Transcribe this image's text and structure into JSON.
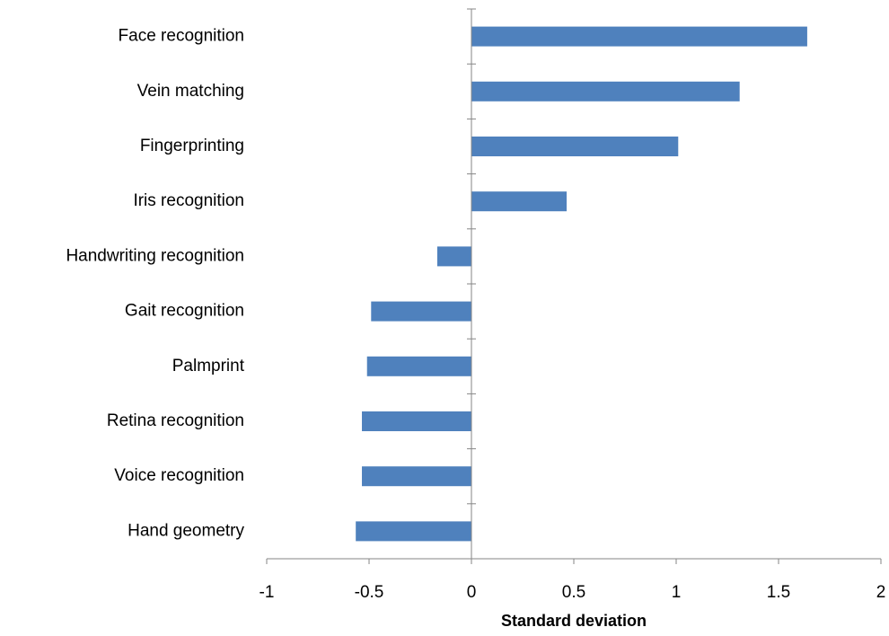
{
  "chart_data": {
    "type": "barh",
    "categories": [
      "Face recognition",
      "Vein matching",
      "Fingerprinting",
      "Iris recognition",
      "Handwriting recognition",
      "Gait recognition",
      "Palmprint",
      "Retina recognition",
      "Voice recognition",
      "Hand geometry"
    ],
    "values": [
      1.64,
      1.31,
      1.01,
      0.465,
      -0.167,
      -0.49,
      -0.51,
      -0.535,
      -0.535,
      -0.565
    ],
    "color": "#4f81bd",
    "x_label": "Standard deviation",
    "xlim": [
      -1,
      2
    ],
    "xticks": [
      -1,
      -0.5,
      0,
      0.5,
      1,
      1.5,
      2
    ]
  }
}
